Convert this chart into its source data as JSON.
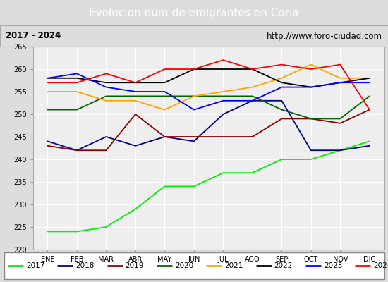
{
  "title": "Evolucion num de emigrantes en Coria",
  "subtitle_left": "2017 - 2024",
  "subtitle_right": "http://www.foro-ciudad.com",
  "months": [
    "ENE",
    "FEB",
    "MAR",
    "ABR",
    "MAY",
    "JUN",
    "JUL",
    "AGO",
    "SEP",
    "OCT",
    "NOV",
    "DIC"
  ],
  "ylim": [
    220,
    265
  ],
  "yticks": [
    220,
    225,
    230,
    235,
    240,
    245,
    250,
    255,
    260,
    265
  ],
  "series": {
    "2017": {
      "color": "#00ee00",
      "values": [
        224,
        224,
        225,
        229,
        234,
        234,
        237,
        237,
        240,
        240,
        242,
        244
      ]
    },
    "2018": {
      "color": "#00008b",
      "values": [
        244,
        242,
        245,
        243,
        245,
        244,
        250,
        253,
        253,
        242,
        242,
        243
      ]
    },
    "2019": {
      "color": "#8b0000",
      "values": [
        243,
        242,
        242,
        250,
        245,
        245,
        245,
        245,
        249,
        249,
        248,
        251
      ]
    },
    "2020": {
      "color": "#006400",
      "values": [
        251,
        251,
        254,
        254,
        254,
        254,
        254,
        254,
        251,
        249,
        249,
        254
      ]
    },
    "2021": {
      "color": "#ffa500",
      "values": [
        255,
        255,
        253,
        253,
        251,
        254,
        255,
        256,
        258,
        261,
        258,
        258
      ]
    },
    "2022": {
      "color": "#000000",
      "values": [
        258,
        258,
        257,
        257,
        257,
        260,
        260,
        260,
        257,
        256,
        257,
        258
      ]
    },
    "2023": {
      "color": "#0000ff",
      "values": [
        258,
        259,
        256,
        255,
        255,
        251,
        253,
        253,
        256,
        256,
        257,
        257
      ]
    },
    "2024": {
      "color": "#ff0000",
      "values": [
        257,
        257,
        259,
        257,
        260,
        260,
        262,
        260,
        261,
        260,
        261,
        251
      ]
    }
  },
  "background_color": "#dddddd",
  "plot_bg_color": "#eeeeee",
  "title_bg_color": "#4d8fcc",
  "title_color": "white",
  "grid_color": "#ffffff",
  "legend_bg_color": "#ffffff",
  "legend_border_color": "#888888",
  "subtitle_bg_color": "#dddddd"
}
